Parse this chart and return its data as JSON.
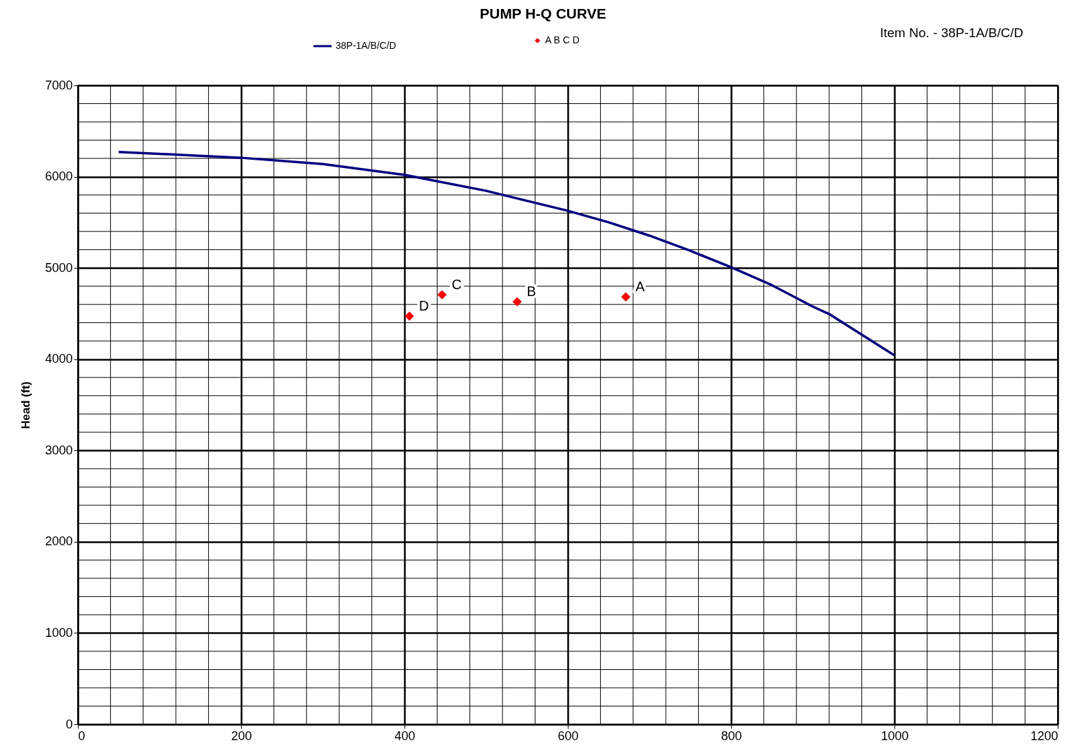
{
  "chart_data": {
    "type": "line",
    "title": "PUMP H-Q CURVE",
    "ylabel": "Head (ft)",
    "xlim": [
      0,
      1200
    ],
    "ylim": [
      0,
      7000
    ],
    "xticks": [
      0,
      {
        "value": 40,
        "label": null
      },
      {
        "value": 80,
        "label": null
      },
      {
        "value": 120,
        "label": null
      },
      {
        "value": 160,
        "label": null
      },
      200,
      {
        "value": 240,
        "label": null
      },
      {
        "value": 280,
        "label": null
      },
      {
        "value": 320,
        "label": null
      },
      {
        "value": 360,
        "label": null
      },
      400,
      {
        "value": 440,
        "label": null
      },
      {
        "value": 480,
        "label": null
      },
      {
        "value": 520,
        "label": null
      },
      {
        "value": 560,
        "label": null
      },
      600,
      {
        "value": 640,
        "label": null
      },
      {
        "value": 680,
        "label": null
      },
      {
        "value": 720,
        "label": null
      },
      {
        "value": 760,
        "label": null
      },
      800,
      {
        "value": 840,
        "label": null
      },
      {
        "value": 880,
        "label": null
      },
      {
        "value": 920,
        "label": null
      },
      {
        "value": 960,
        "label": null
      },
      1000,
      {
        "value": 1040,
        "label": null
      },
      {
        "value": 1080,
        "label": null
      },
      {
        "value": 1120,
        "label": null
      },
      {
        "value": 1160,
        "label": null
      },
      1200
    ],
    "yticks": [
      0,
      {
        "value": 200,
        "label": null
      },
      {
        "value": 400,
        "label": null
      },
      {
        "value": 600,
        "label": null
      },
      {
        "value": 800,
        "label": null
      },
      1000,
      {
        "value": 1200,
        "label": null
      },
      {
        "value": 1400,
        "label": null
      },
      {
        "value": 1600,
        "label": null
      },
      {
        "value": 1800,
        "label": null
      },
      2000,
      {
        "value": 2200,
        "label": null
      },
      {
        "value": 2400,
        "label": null
      },
      {
        "value": 2600,
        "label": null
      },
      {
        "value": 2800,
        "label": null
      },
      3000,
      {
        "value": 3200,
        "label": null
      },
      {
        "value": 3400,
        "label": null
      },
      {
        "value": 3600,
        "label": null
      },
      {
        "value": 3800,
        "label": null
      },
      4000,
      {
        "value": 4200,
        "label": null
      },
      {
        "value": 4400,
        "label": null
      },
      {
        "value": 4600,
        "label": null
      },
      {
        "value": 4800,
        "label": null
      },
      5000,
      {
        "value": 5200,
        "label": null
      },
      {
        "value": 5400,
        "label": null
      },
      {
        "value": 5600,
        "label": null
      },
      {
        "value": 5800,
        "label": null
      },
      6000,
      {
        "value": 6200,
        "label": null
      },
      {
        "value": 6400,
        "label": null
      },
      {
        "value": 6600,
        "label": null
      },
      {
        "value": 6800,
        "label": null
      },
      7000
    ],
    "grid": true,
    "legend": "top",
    "series": [
      {
        "name": "38P-1A/B/C/D",
        "color": "#000080",
        "marker": "none",
        "x": [
          50,
          100,
          200,
          300,
          400,
          500,
          600,
          650,
          700,
          750,
          800,
          850,
          900,
          920,
          1000
        ],
        "values": [
          6270,
          6250,
          6207,
          6139,
          6020,
          5845,
          5626,
          5500,
          5354,
          5188,
          5007,
          4811,
          4577,
          4495,
          4042
        ]
      },
      {
        "name": "A B C D",
        "type": "scatter",
        "color": "#ff0000",
        "marker": "diamond",
        "x": [
          671,
          538,
          446,
          406
        ],
        "values": [
          4683,
          4630,
          4706,
          4472
        ]
      }
    ],
    "annotations": [
      "Item No. -  38P-1A/B/C/D",
      {
        "text": "A",
        "x": 671,
        "y": 4683
      },
      {
        "text": "B",
        "x": 538,
        "y": 4630
      },
      {
        "text": "C",
        "x": 446,
        "y": 4706
      },
      {
        "text": "D",
        "x": 406,
        "y": 4472
      }
    ]
  }
}
